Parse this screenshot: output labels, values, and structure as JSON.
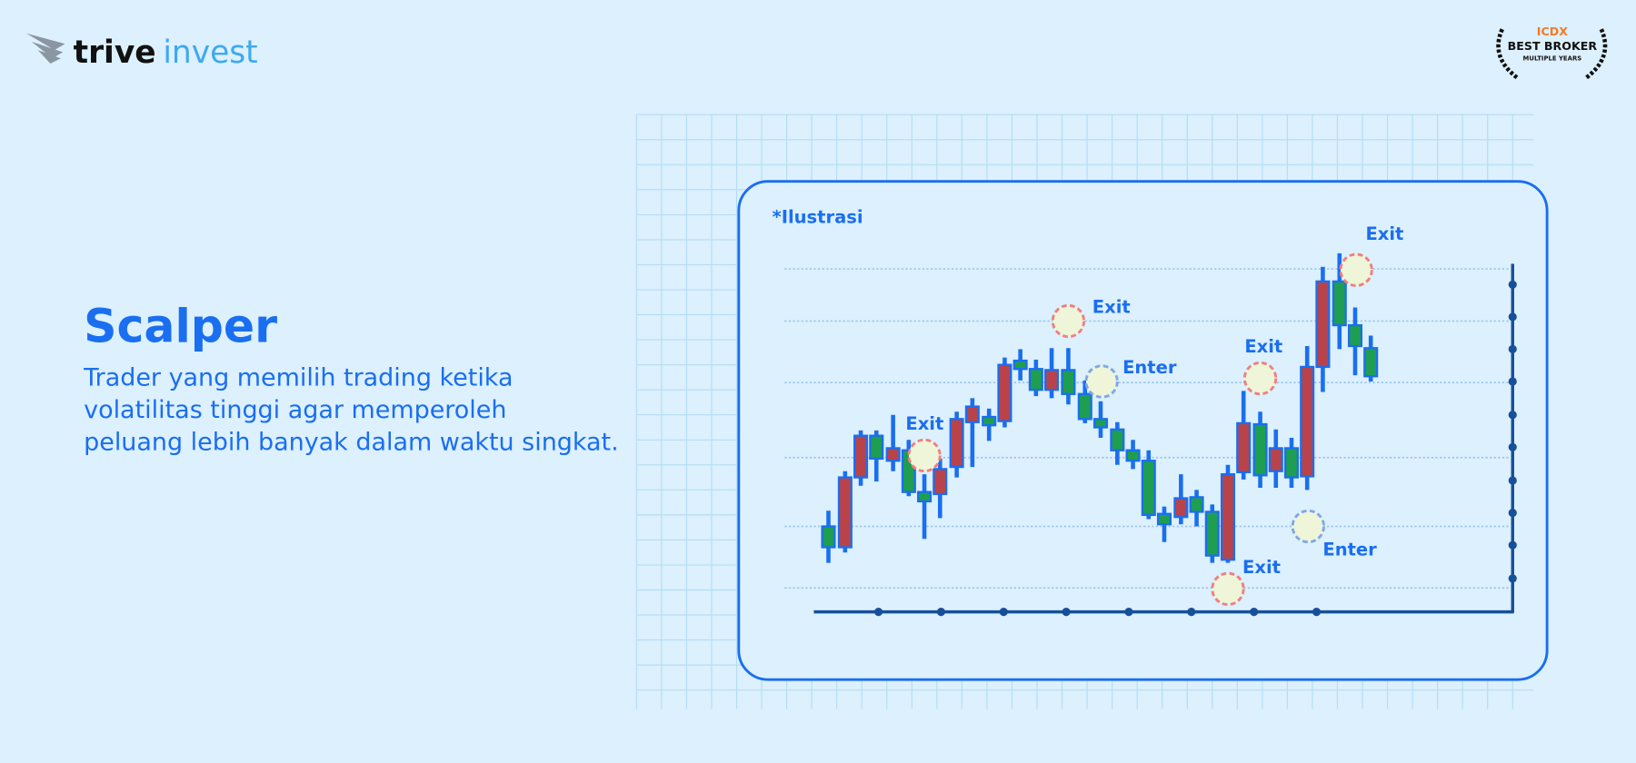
{
  "header": {
    "logo": {
      "part1": "trive",
      "part2": "invest"
    },
    "badge": {
      "top": "ICDX",
      "middle": "BEST BROKER",
      "bottom": "MULTIPLE YEARS"
    }
  },
  "content": {
    "title": "Scalper",
    "description": [
      "Trader yang memilih trading ketika",
      "volatilitas tinggi agar memperoleh",
      "peluang lebih banyak dalam waktu singkat."
    ]
  },
  "illustration": {
    "note": "*Ilustrasi",
    "annotations": [
      "Exit",
      "Enter",
      "Exit",
      "Exit",
      "Exit",
      "Enter",
      "Exit"
    ]
  }
}
